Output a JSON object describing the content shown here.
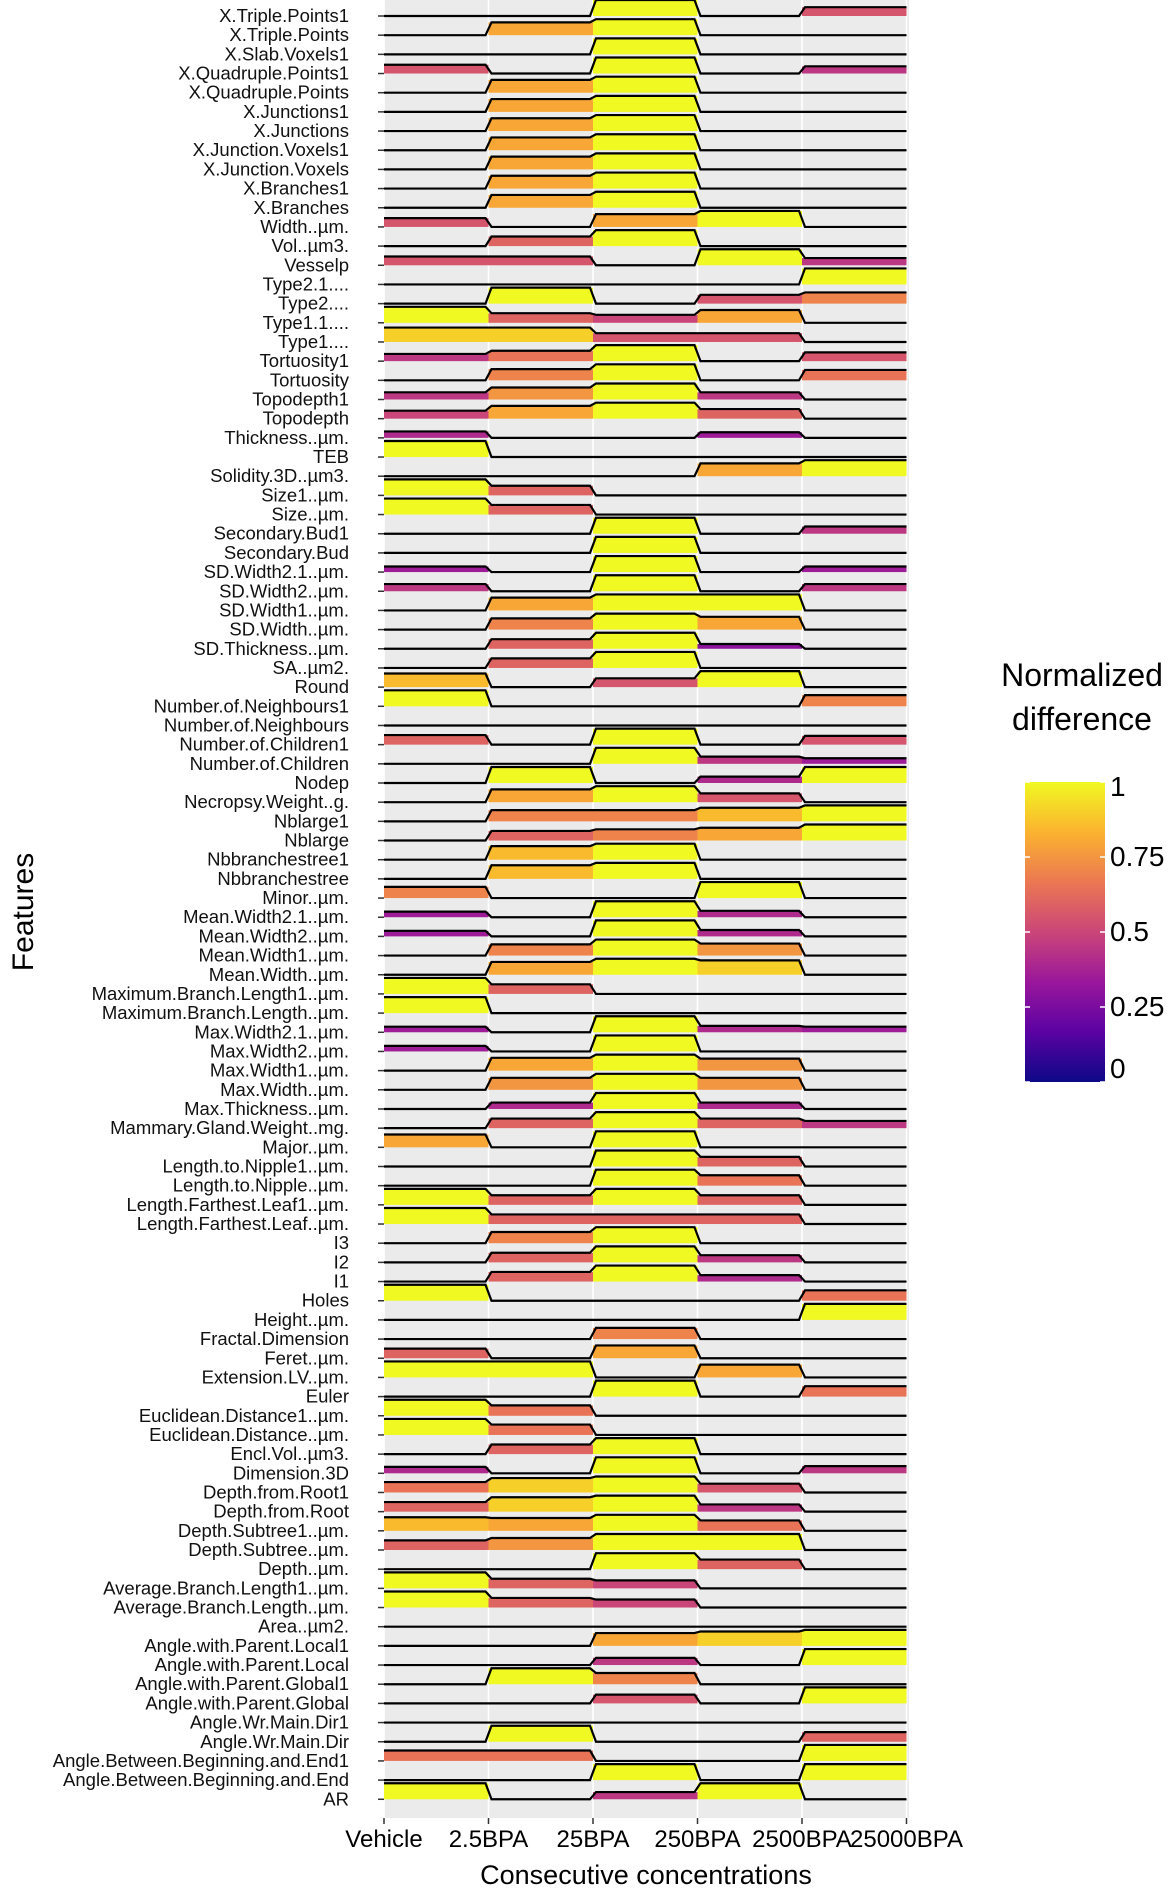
{
  "chart_data": {
    "type": "heatmap",
    "title": "",
    "xlabel": "Consecutive concentrations",
    "ylabel": "Features",
    "x": [
      "Vehicle",
      "2.5BPA",
      "25BPA",
      "250BPA",
      "2500BPA",
      "25000BPA"
    ],
    "legend": {
      "title_lines": [
        "Normalized",
        "difference"
      ],
      "ticks": [
        "1",
        "0.75",
        "0.5",
        "0.25",
        "0"
      ],
      "tick_values": [
        1,
        0.75,
        0.5,
        0.25,
        0
      ],
      "placement": "right"
    },
    "color_scale": {
      "name": "plasma",
      "stops": [
        "#0d0887",
        "#5b02a3",
        "#9a179b",
        "#cb4678",
        "#eb7852",
        "#fbb32f",
        "#f0f921"
      ]
    },
    "grid": true,
    "notes": "rows listed top to bottom; values are the normalized difference per concentration",
    "features": [
      "X.Triple.Points1",
      "X.Triple.Points",
      "X.Slab.Voxels1",
      "X.Quadruple.Points1",
      "X.Quadruple.Points",
      "X.Junctions1",
      "X.Junctions",
      "X.Junction.Voxels1",
      "X.Junction.Voxels",
      "X.Branches1",
      "X.Branches",
      "Width..µm.",
      "Vol..µm3.",
      "Vesselp",
      "Type2.1....",
      "Type2....",
      "Type1.1....",
      "Type1....",
      "Tortuosity1",
      "Tortuosity",
      "Topodepth1",
      "Topodepth",
      "Thickness..µm.",
      "TEB",
      "Solidity.3D..µm3.",
      "Size1..µm.",
      "Size..µm.",
      "Secondary.Bud1",
      "Secondary.Bud",
      "SD.Width2.1..µm.",
      "SD.Width2..µm.",
      "SD.Width1..µm.",
      "SD.Width..µm.",
      "SD.Thickness..µm.",
      "SA..µm2.",
      "Round",
      "Number.of.Neighbours1",
      "Number.of.Neighbours",
      "Number.of.Children1",
      "Number.of.Children",
      "Nodep",
      "Necropsy.Weight..g.",
      "Nblarge1",
      "Nblarge",
      "Nbbranchestree1",
      "Nbbranchestree",
      "Minor..µm.",
      "Mean.Width2.1..µm.",
      "Mean.Width2..µm.",
      "Mean.Width1..µm.",
      "Mean.Width..µm.",
      "Maximum.Branch.Length1..µm.",
      "Maximum.Branch.Length..µm.",
      "Max.Width2.1..µm.",
      "Max.Width2..µm.",
      "Max.Width1..µm.",
      "Max.Width..µm.",
      "Max.Thickness..µm.",
      "Mammary.Gland.Weight..mg.",
      "Major..µm.",
      "Length.to.Nipple1..µm.",
      "Length.to.Nipple..µm.",
      "Length.Farthest.Leaf1..µm.",
      "Length.Farthest.Leaf..µm.",
      "I3",
      "I2",
      "I1",
      "Holes",
      "Height..µm.",
      "Fractal.Dimension",
      "Feret..µm.",
      "Extension.LV..µm.",
      "Euler",
      "Euclidean.Distance1..µm.",
      "Euclidean.Distance..µm.",
      "Encl.Vol..µm3.",
      "Dimension.3D",
      "Depth.from.Root1",
      "Depth.from.Root",
      "Depth.Subtree1..µm.",
      "Depth.Subtree..µm.",
      "Depth..µm.",
      "Average.Branch.Length1..µm.",
      "Average.Branch.Length..µm.",
      "Area..µm2.",
      "Angle.with.Parent.Local1",
      "Angle.with.Parent.Local",
      "Angle.with.Parent.Global1",
      "Angle.with.Parent.Global",
      "Angle.Wr.Main.Dir1",
      "Angle.Wr.Main.Dir",
      "Angle.Between.Beginning.and.End1",
      "Angle.Between.Beginning.and.End",
      "AR"
    ],
    "values": [
      [
        0.0,
        0.0,
        1.0,
        0.0,
        0.55
      ],
      [
        0.0,
        0.8,
        1.0,
        0.0,
        0.0
      ],
      [
        0.0,
        0.0,
        1.0,
        0.0,
        0.0
      ],
      [
        0.55,
        0.0,
        1.0,
        0.0,
        0.45
      ],
      [
        0.0,
        0.8,
        1.0,
        0.0,
        0.0
      ],
      [
        0.0,
        0.8,
        1.0,
        0.0,
        0.0
      ],
      [
        0.0,
        0.8,
        1.0,
        0.0,
        0.0
      ],
      [
        0.0,
        0.8,
        1.0,
        0.0,
        0.0
      ],
      [
        0.0,
        0.8,
        1.0,
        0.0,
        0.0
      ],
      [
        0.0,
        0.8,
        1.0,
        0.0,
        0.0
      ],
      [
        0.0,
        0.8,
        1.0,
        0.0,
        0.0
      ],
      [
        0.55,
        0.0,
        0.8,
        1.0,
        0.0
      ],
      [
        0.0,
        0.6,
        1.0,
        0.0,
        0.0
      ],
      [
        0.55,
        0.55,
        0.0,
        1.0,
        0.45
      ],
      [
        0.0,
        0.0,
        0.0,
        0.0,
        1.0
      ],
      [
        0.0,
        1.0,
        0.0,
        0.55,
        0.7
      ],
      [
        1.0,
        0.6,
        0.5,
        0.8,
        0.0
      ],
      [
        0.9,
        0.9,
        0.55,
        0.55,
        0.0
      ],
      [
        0.45,
        0.65,
        1.0,
        0.0,
        0.55
      ],
      [
        0.0,
        0.7,
        1.0,
        0.0,
        0.65
      ],
      [
        0.45,
        0.75,
        1.0,
        0.45,
        0.0
      ],
      [
        0.5,
        0.8,
        1.0,
        0.6,
        0.0
      ],
      [
        0.4,
        0.0,
        0.0,
        0.35,
        0.0
      ],
      [
        1.0,
        0.0,
        0.0,
        0.0,
        0.0
      ],
      [
        0.0,
        0.0,
        0.0,
        0.8,
        1.0
      ],
      [
        1.0,
        0.6,
        0.0,
        0.0,
        0.0
      ],
      [
        1.0,
        0.6,
        0.0,
        0.0,
        0.0
      ],
      [
        0.0,
        0.0,
        1.0,
        0.0,
        0.45
      ],
      [
        0.0,
        0.0,
        1.0,
        0.0,
        0.0
      ],
      [
        0.35,
        0.0,
        1.0,
        0.0,
        0.35
      ],
      [
        0.45,
        0.0,
        1.0,
        0.0,
        0.45
      ],
      [
        0.0,
        0.8,
        1.0,
        1.0,
        0.0
      ],
      [
        0.0,
        0.7,
        1.0,
        0.8,
        0.0
      ],
      [
        0.0,
        0.6,
        1.0,
        0.3,
        0.0
      ],
      [
        0.0,
        0.6,
        1.0,
        0.0,
        0.0
      ],
      [
        0.85,
        0.0,
        0.55,
        1.0,
        0.0
      ],
      [
        1.0,
        0.0,
        0.0,
        0.0,
        0.7
      ],
      [
        0.0,
        0.0,
        0.0,
        0.0,
        0.0
      ],
      [
        0.6,
        0.0,
        1.0,
        0.0,
        0.55
      ],
      [
        0.0,
        0.0,
        1.0,
        0.45,
        0.35
      ],
      [
        0.0,
        1.0,
        0.0,
        0.4,
        1.0
      ],
      [
        0.0,
        0.8,
        1.0,
        0.55,
        0.0
      ],
      [
        0.0,
        0.7,
        0.7,
        0.85,
        1.0
      ],
      [
        0.0,
        0.6,
        0.7,
        0.8,
        1.0
      ],
      [
        0.0,
        0.85,
        1.0,
        0.0,
        0.0
      ],
      [
        0.0,
        0.85,
        1.0,
        0.0,
        0.0
      ],
      [
        0.7,
        0.0,
        0.0,
        1.0,
        0.0
      ],
      [
        0.35,
        0.0,
        1.0,
        0.4,
        0.0
      ],
      [
        0.35,
        0.0,
        1.0,
        0.4,
        0.0
      ],
      [
        0.0,
        0.7,
        1.0,
        0.75,
        0.0
      ],
      [
        0.0,
        0.8,
        1.0,
        0.9,
        0.0
      ],
      [
        1.0,
        0.6,
        0.0,
        0.0,
        0.0
      ],
      [
        1.0,
        0.0,
        0.0,
        0.0,
        0.0
      ],
      [
        0.35,
        0.0,
        1.0,
        0.4,
        0.35
      ],
      [
        0.35,
        0.0,
        1.0,
        0.0,
        0.0
      ],
      [
        0.0,
        0.8,
        1.0,
        0.75,
        0.0
      ],
      [
        0.0,
        0.75,
        1.0,
        0.75,
        0.0
      ],
      [
        0.0,
        0.4,
        1.0,
        0.4,
        0.0
      ],
      [
        0.0,
        0.6,
        1.0,
        0.6,
        0.45
      ],
      [
        0.8,
        0.0,
        1.0,
        0.0,
        0.0
      ],
      [
        0.0,
        0.0,
        1.0,
        0.6,
        0.0
      ],
      [
        0.0,
        0.0,
        1.0,
        0.65,
        0.0
      ],
      [
        1.0,
        0.6,
        1.0,
        0.6,
        0.0
      ],
      [
        1.0,
        0.6,
        0.6,
        0.6,
        0.0
      ],
      [
        0.0,
        0.7,
        1.0,
        0.0,
        0.0
      ],
      [
        0.0,
        0.6,
        1.0,
        0.45,
        0.0
      ],
      [
        0.0,
        0.6,
        1.0,
        0.4,
        0.0
      ],
      [
        1.0,
        0.0,
        0.0,
        0.0,
        0.65
      ],
      [
        0.0,
        0.0,
        0.0,
        0.0,
        1.0
      ],
      [
        0.0,
        0.0,
        0.7,
        0.0,
        0.0
      ],
      [
        0.6,
        0.0,
        0.8,
        0.0,
        0.0
      ],
      [
        1.0,
        1.0,
        0.0,
        0.8,
        0.0
      ],
      [
        0.0,
        0.0,
        1.0,
        0.0,
        0.65
      ],
      [
        1.0,
        0.65,
        0.0,
        0.0,
        0.0
      ],
      [
        1.0,
        0.65,
        0.0,
        0.0,
        0.0
      ],
      [
        0.0,
        0.6,
        1.0,
        0.0,
        0.0
      ],
      [
        0.4,
        0.0,
        1.0,
        0.0,
        0.45
      ],
      [
        0.65,
        0.9,
        1.0,
        0.55,
        0.0
      ],
      [
        0.6,
        0.9,
        1.0,
        0.45,
        0.0
      ],
      [
        0.85,
        0.8,
        1.0,
        0.65,
        0.0
      ],
      [
        0.6,
        0.75,
        1.0,
        1.0,
        0.0
      ],
      [
        0.0,
        0.0,
        1.0,
        0.6,
        0.0
      ],
      [
        1.0,
        0.6,
        0.5,
        0.0,
        0.0
      ],
      [
        1.0,
        0.6,
        0.5,
        0.0,
        0.0
      ],
      [
        0.0,
        0.0,
        0.0,
        0.0,
        0.0
      ],
      [
        0.0,
        0.0,
        0.8,
        0.9,
        1.0
      ],
      [
        0.0,
        0.0,
        0.45,
        0.0,
        1.0
      ],
      [
        0.0,
        1.0,
        0.7,
        0.0,
        0.0
      ],
      [
        0.0,
        0.0,
        0.55,
        0.0,
        1.0
      ],
      [
        0.0,
        0.0,
        0.0,
        0.0,
        0.0
      ],
      [
        0.0,
        1.0,
        0.0,
        0.0,
        0.6
      ],
      [
        0.65,
        0.65,
        0.0,
        0.0,
        1.0
      ],
      [
        0.0,
        0.0,
        1.0,
        0.0,
        1.0
      ],
      [
        1.0,
        0.0,
        0.45,
        1.0,
        0.0
      ]
    ]
  }
}
